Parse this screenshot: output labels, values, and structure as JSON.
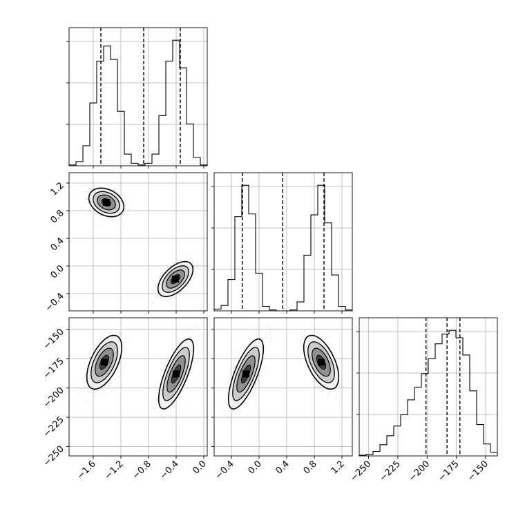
{
  "chart_data": {
    "type": "corner",
    "title": "",
    "parameter_axes": [
      {
        "ticks": [
          -1.6,
          -1.2,
          -0.8,
          -0.4,
          0.0
        ],
        "tick_labels": [
          "−1.6",
          "−1.2",
          "−0.8",
          "−0.4",
          "0.0"
        ],
        "range": [
          -1.95,
          0.05
        ]
      },
      {
        "ticks": [
          -0.4,
          0.0,
          0.4,
          0.8,
          1.2
        ],
        "tick_labels": [
          "−0.4",
          "0.0",
          "0.4",
          "0.8",
          "1.2"
        ],
        "range": [
          -0.65,
          1.35
        ]
      },
      {
        "ticks": [
          -250,
          -225,
          -200,
          -175,
          -150
        ],
        "tick_labels": [
          "−250",
          "−225",
          "−200",
          "−175",
          "−150"
        ],
        "range": [
          -258,
          -140
        ]
      }
    ],
    "grid": true,
    "histograms": [
      {
        "parameter": 0,
        "bin_edges": [
          -1.95,
          -1.85,
          -1.75,
          -1.65,
          -1.55,
          -1.45,
          -1.35,
          -1.25,
          -1.15,
          -1.05,
          -0.95,
          -0.85,
          -0.75,
          -0.65,
          -0.55,
          -0.45,
          -0.35,
          -0.25,
          -0.15,
          -0.05,
          0.05
        ],
        "counts": [
          1,
          5,
          24,
          75,
          125,
          143,
          127,
          65,
          14,
          3,
          1,
          3,
          14,
          60,
          125,
          150,
          117,
          50,
          10,
          1
        ],
        "quantiles": [
          -1.49,
          -0.87,
          -0.34
        ]
      },
      {
        "parameter": 1,
        "bin_edges": [
          -0.65,
          -0.55,
          -0.45,
          -0.35,
          -0.25,
          -0.15,
          -0.05,
          0.05,
          0.15,
          0.25,
          0.35,
          0.45,
          0.55,
          0.65,
          0.75,
          0.85,
          0.95,
          1.05,
          1.15,
          1.25,
          1.35
        ],
        "counts": [
          2,
          6,
          35,
          105,
          140,
          108,
          42,
          5,
          1,
          0,
          0,
          1,
          10,
          62,
          107,
          140,
          98,
          40,
          5,
          1
        ],
        "quantiles": [
          -0.24,
          0.34,
          0.94
        ]
      },
      {
        "parameter": 2,
        "bin_edges": [
          -258,
          -252.1,
          -246.2,
          -240.3,
          -234.4,
          -228.5,
          -222.6,
          -216.7,
          -210.8,
          -204.9,
          -199,
          -193.1,
          -187.2,
          -181.3,
          -175.4,
          -169.5,
          -163.6,
          -157.7,
          -151.8,
          -145.9,
          -140
        ],
        "counts": [
          1,
          2,
          6,
          15,
          27,
          40,
          55,
          75,
          92,
          110,
          130,
          150,
          163,
          168,
          158,
          135,
          87,
          42,
          16,
          5
        ],
        "quantiles": [
          -201,
          -183,
          -172
        ]
      }
    ],
    "scatter_panels": [
      {
        "x_param": 0,
        "y_param": 1,
        "clusters": [
          {
            "center": [
              -1.41,
              0.92
            ],
            "sd": [
              0.11,
              0.09
            ],
            "corr": -0.3
          },
          {
            "center": [
              -0.41,
              -0.19
            ],
            "sd": [
              0.11,
              0.11
            ],
            "corr": 0.55
          }
        ]
      },
      {
        "x_param": 0,
        "y_param": 2,
        "clusters": [
          {
            "center": [
              -1.44,
              -178
            ],
            "sd": [
              0.11,
              10
            ],
            "corr": 0.55
          },
          {
            "center": [
              -0.4,
              -188
            ],
            "sd": [
              0.11,
              13
            ],
            "corr": 0.72
          }
        ]
      },
      {
        "x_param": 1,
        "y_param": 2,
        "clusters": [
          {
            "center": [
              -0.19,
              -188
            ],
            "sd": [
              0.11,
              13
            ],
            "corr": 0.72
          },
          {
            "center": [
              0.9,
              -178
            ],
            "sd": [
              0.11,
              10
            ],
            "corr": -0.55
          }
        ]
      }
    ]
  }
}
